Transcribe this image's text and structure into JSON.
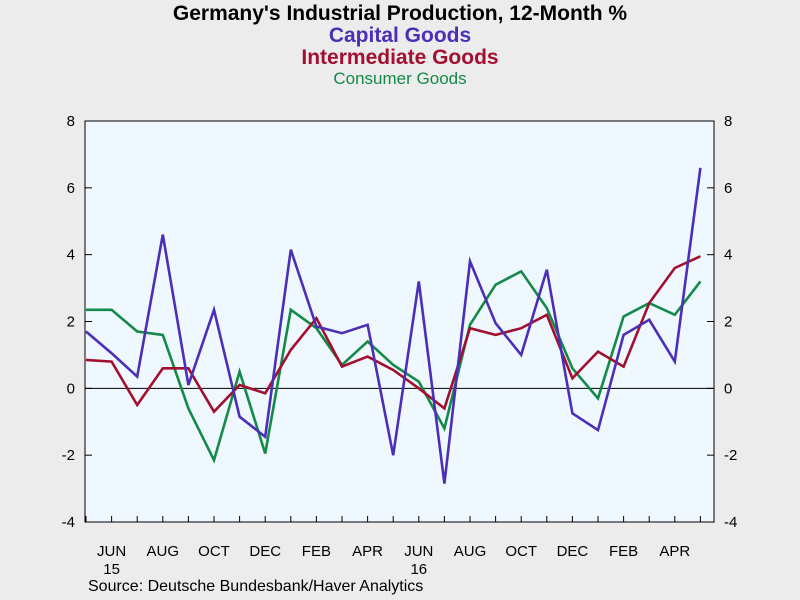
{
  "colors": {
    "capital": "#4b2fb6",
    "intermediate": "#a3102f",
    "consumer": "#138a48",
    "plot_bg": "#f0f8ff",
    "page_bg": "#ececec"
  },
  "source": "Source:  Deutsche Bundesbank/Haver Analytics",
  "chart_data": {
    "type": "line",
    "title": "Germany's Industrial Production, 12-Month %",
    "xlabel": "",
    "ylabel": "",
    "ylim": [
      -4,
      8
    ],
    "yticks": [
      -4,
      -2,
      0,
      2,
      4,
      6,
      8
    ],
    "grid": false,
    "zero_line": true,
    "x_tick_labels": [
      "JUN",
      "AUG",
      "OCT",
      "DEC",
      "FEB",
      "APR",
      "JUN",
      "AUG",
      "OCT",
      "DEC",
      "FEB",
      "APR"
    ],
    "x_tick_label_months": [
      "2015-06",
      "2015-08",
      "2015-10",
      "2015-12",
      "2016-02",
      "2016-04",
      "2016-06",
      "2016-08",
      "2016-10",
      "2016-12",
      "2017-02",
      "2017-04"
    ],
    "year_labels": [
      {
        "label": "15",
        "month": "2015-06"
      },
      {
        "label": "16",
        "month": "2016-06"
      }
    ],
    "x": [
      "2015-05",
      "2015-06",
      "2015-07",
      "2015-08",
      "2015-09",
      "2015-10",
      "2015-11",
      "2015-12",
      "2016-01",
      "2016-02",
      "2016-03",
      "2016-04",
      "2016-05",
      "2016-06",
      "2016-07",
      "2016-08",
      "2016-09",
      "2016-10",
      "2016-11",
      "2016-12",
      "2017-01",
      "2017-02",
      "2017-03",
      "2017-04",
      "2017-05"
    ],
    "series": [
      {
        "name": "Capital Goods",
        "values": [
          1.7,
          1.05,
          0.35,
          4.6,
          0.1,
          2.35,
          -0.85,
          -1.45,
          4.15,
          1.85,
          1.65,
          1.9,
          -2.0,
          3.2,
          -2.85,
          3.8,
          1.95,
          1.0,
          3.55,
          -0.75,
          -1.25,
          1.6,
          2.05,
          0.8,
          6.6
        ]
      },
      {
        "name": "Intermediate Goods",
        "values": [
          0.85,
          0.8,
          -0.5,
          0.6,
          0.6,
          -0.7,
          0.1,
          -0.15,
          1.15,
          2.1,
          0.65,
          0.95,
          0.55,
          0.0,
          -0.6,
          1.8,
          1.6,
          1.8,
          2.2,
          0.3,
          1.1,
          0.65,
          2.55,
          3.6,
          3.95
        ]
      },
      {
        "name": "Consumer Goods",
        "values": [
          2.35,
          2.35,
          1.7,
          1.6,
          -0.6,
          -2.15,
          0.5,
          -1.95,
          2.35,
          1.8,
          0.7,
          1.4,
          0.7,
          0.2,
          -1.2,
          1.9,
          3.1,
          3.5,
          2.4,
          0.6,
          -0.3,
          2.15,
          2.55,
          2.2,
          3.2
        ]
      }
    ]
  }
}
